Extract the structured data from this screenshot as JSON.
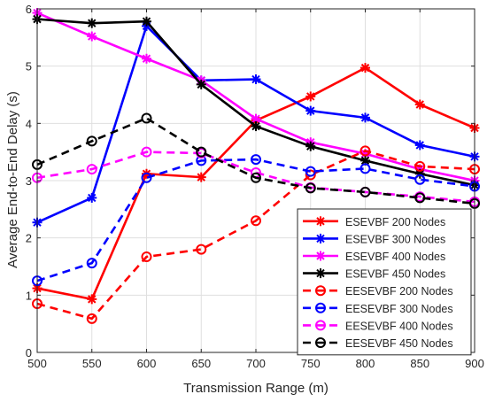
{
  "chart_data": {
    "type": "line",
    "title": "",
    "xlabel": "Transmission Range (m)",
    "ylabel": "Average End-to-End Delay (s)",
    "x": [
      500,
      550,
      600,
      650,
      700,
      750,
      800,
      850,
      900
    ],
    "xlim": [
      500,
      900
    ],
    "ylim": [
      0,
      6
    ],
    "xticks": [
      500,
      550,
      600,
      650,
      700,
      750,
      800,
      850,
      900
    ],
    "yticks": [
      0,
      1,
      2,
      3,
      4,
      5,
      6
    ],
    "grid": true,
    "legend_position": "bottom-right",
    "series": [
      {
        "name": "ESEVBF 200 Nodes",
        "color": "#ff0000",
        "dash": "solid",
        "marker": "asterisk",
        "values": [
          1.12,
          0.93,
          3.12,
          3.06,
          4.05,
          4.47,
          4.97,
          4.33,
          3.92
        ]
      },
      {
        "name": "ESEVBF 300 Nodes",
        "color": "#0000ff",
        "dash": "solid",
        "marker": "asterisk",
        "values": [
          2.27,
          2.7,
          5.7,
          4.75,
          4.77,
          4.22,
          4.1,
          3.62,
          3.42
        ]
      },
      {
        "name": "ESEVBF 400 Nodes",
        "color": "#ff00ff",
        "dash": "solid",
        "marker": "asterisk",
        "values": [
          5.93,
          5.52,
          5.13,
          4.75,
          4.08,
          3.67,
          3.47,
          3.2,
          3.0
        ]
      },
      {
        "name": "ESEVBF 450 Nodes",
        "color": "#000000",
        "dash": "solid",
        "marker": "asterisk",
        "values": [
          5.82,
          5.75,
          5.78,
          4.68,
          3.95,
          3.6,
          3.35,
          3.12,
          2.92
        ]
      },
      {
        "name": "EESEVBF  200 Nodes",
        "color": "#ff0000",
        "dash": "dashed",
        "marker": "circle",
        "values": [
          0.85,
          0.59,
          1.67,
          1.8,
          2.3,
          3.1,
          3.52,
          3.25,
          3.2
        ]
      },
      {
        "name": "EESEVBF  300 Nodes",
        "color": "#0000ff",
        "dash": "dashed",
        "marker": "circle",
        "values": [
          1.25,
          1.56,
          3.05,
          3.35,
          3.37,
          3.16,
          3.21,
          3.02,
          2.9
        ]
      },
      {
        "name": "EESEVBF  400 Nodes",
        "color": "#ff00ff",
        "dash": "dashed",
        "marker": "circle",
        "values": [
          3.05,
          3.2,
          3.5,
          3.48,
          3.14,
          2.88,
          2.8,
          2.72,
          2.63
        ]
      },
      {
        "name": "EESEVBF  450 Nodes",
        "color": "#000000",
        "dash": "dashed",
        "marker": "circle",
        "values": [
          3.28,
          3.69,
          4.09,
          3.5,
          3.05,
          2.87,
          2.8,
          2.7,
          2.6
        ]
      }
    ]
  }
}
